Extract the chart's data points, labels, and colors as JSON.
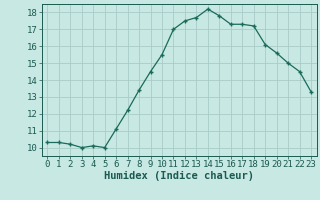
{
  "x": [
    0,
    1,
    2,
    3,
    4,
    5,
    6,
    7,
    8,
    9,
    10,
    11,
    12,
    13,
    14,
    15,
    16,
    17,
    18,
    19,
    20,
    21,
    22,
    23
  ],
  "y": [
    10.3,
    10.3,
    10.2,
    10.0,
    10.1,
    10.0,
    11.1,
    12.2,
    13.4,
    14.5,
    15.5,
    17.0,
    17.5,
    17.7,
    18.2,
    17.8,
    17.3,
    17.3,
    17.2,
    16.1,
    15.6,
    15.0,
    14.5,
    13.3
  ],
  "xlabel": "Humidex (Indice chaleur)",
  "xlim": [
    -0.5,
    23.5
  ],
  "ylim": [
    9.5,
    18.5
  ],
  "yticks": [
    10,
    11,
    12,
    13,
    14,
    15,
    16,
    17,
    18
  ],
  "xticks": [
    0,
    1,
    2,
    3,
    4,
    5,
    6,
    7,
    8,
    9,
    10,
    11,
    12,
    13,
    14,
    15,
    16,
    17,
    18,
    19,
    20,
    21,
    22,
    23
  ],
  "line_color": "#1a6b5a",
  "marker": "+",
  "bg_color": "#c8e8e4",
  "grid_color": "#a8ccc8",
  "text_color": "#1a5a50",
  "tick_fontsize": 6.5,
  "xlabel_fontsize": 7.5
}
